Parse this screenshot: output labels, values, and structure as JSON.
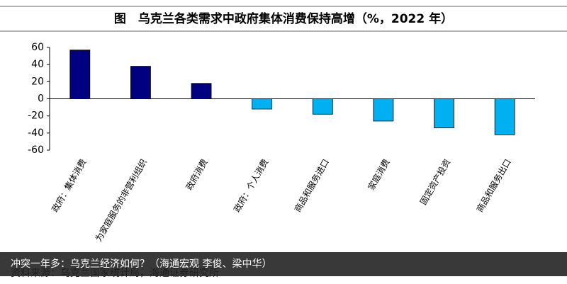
{
  "chart_data": {
    "type": "bar",
    "title": "图　乌克兰各类需求中政府集体消费保持高增（%，2022 年）",
    "categories": [
      "政府：集体消费",
      "为家庭服务的非营利组织",
      "政府消费",
      "政府：个人消费",
      "商品和服务进口",
      "家庭消费",
      "固定资产投资",
      "商品和服务出口"
    ],
    "values": [
      57,
      38,
      18,
      -12,
      -18,
      -26,
      -34,
      -42
    ],
    "colors": [
      "#000080",
      "#000080",
      "#000080",
      "#00b0f0",
      "#00b0f0",
      "#00b0f0",
      "#00b0f0",
      "#00b0f0"
    ],
    "ylim": [
      -60,
      60
    ],
    "yticks": [
      -60,
      -40,
      -20,
      0,
      20,
      40,
      60
    ],
    "grid": false,
    "source": "资料来源：乌克兰国家统计局，海通证券研究所"
  },
  "caption": "冲突一年多：乌克兰经济如何？（海通宏观 李俊、梁中华）"
}
